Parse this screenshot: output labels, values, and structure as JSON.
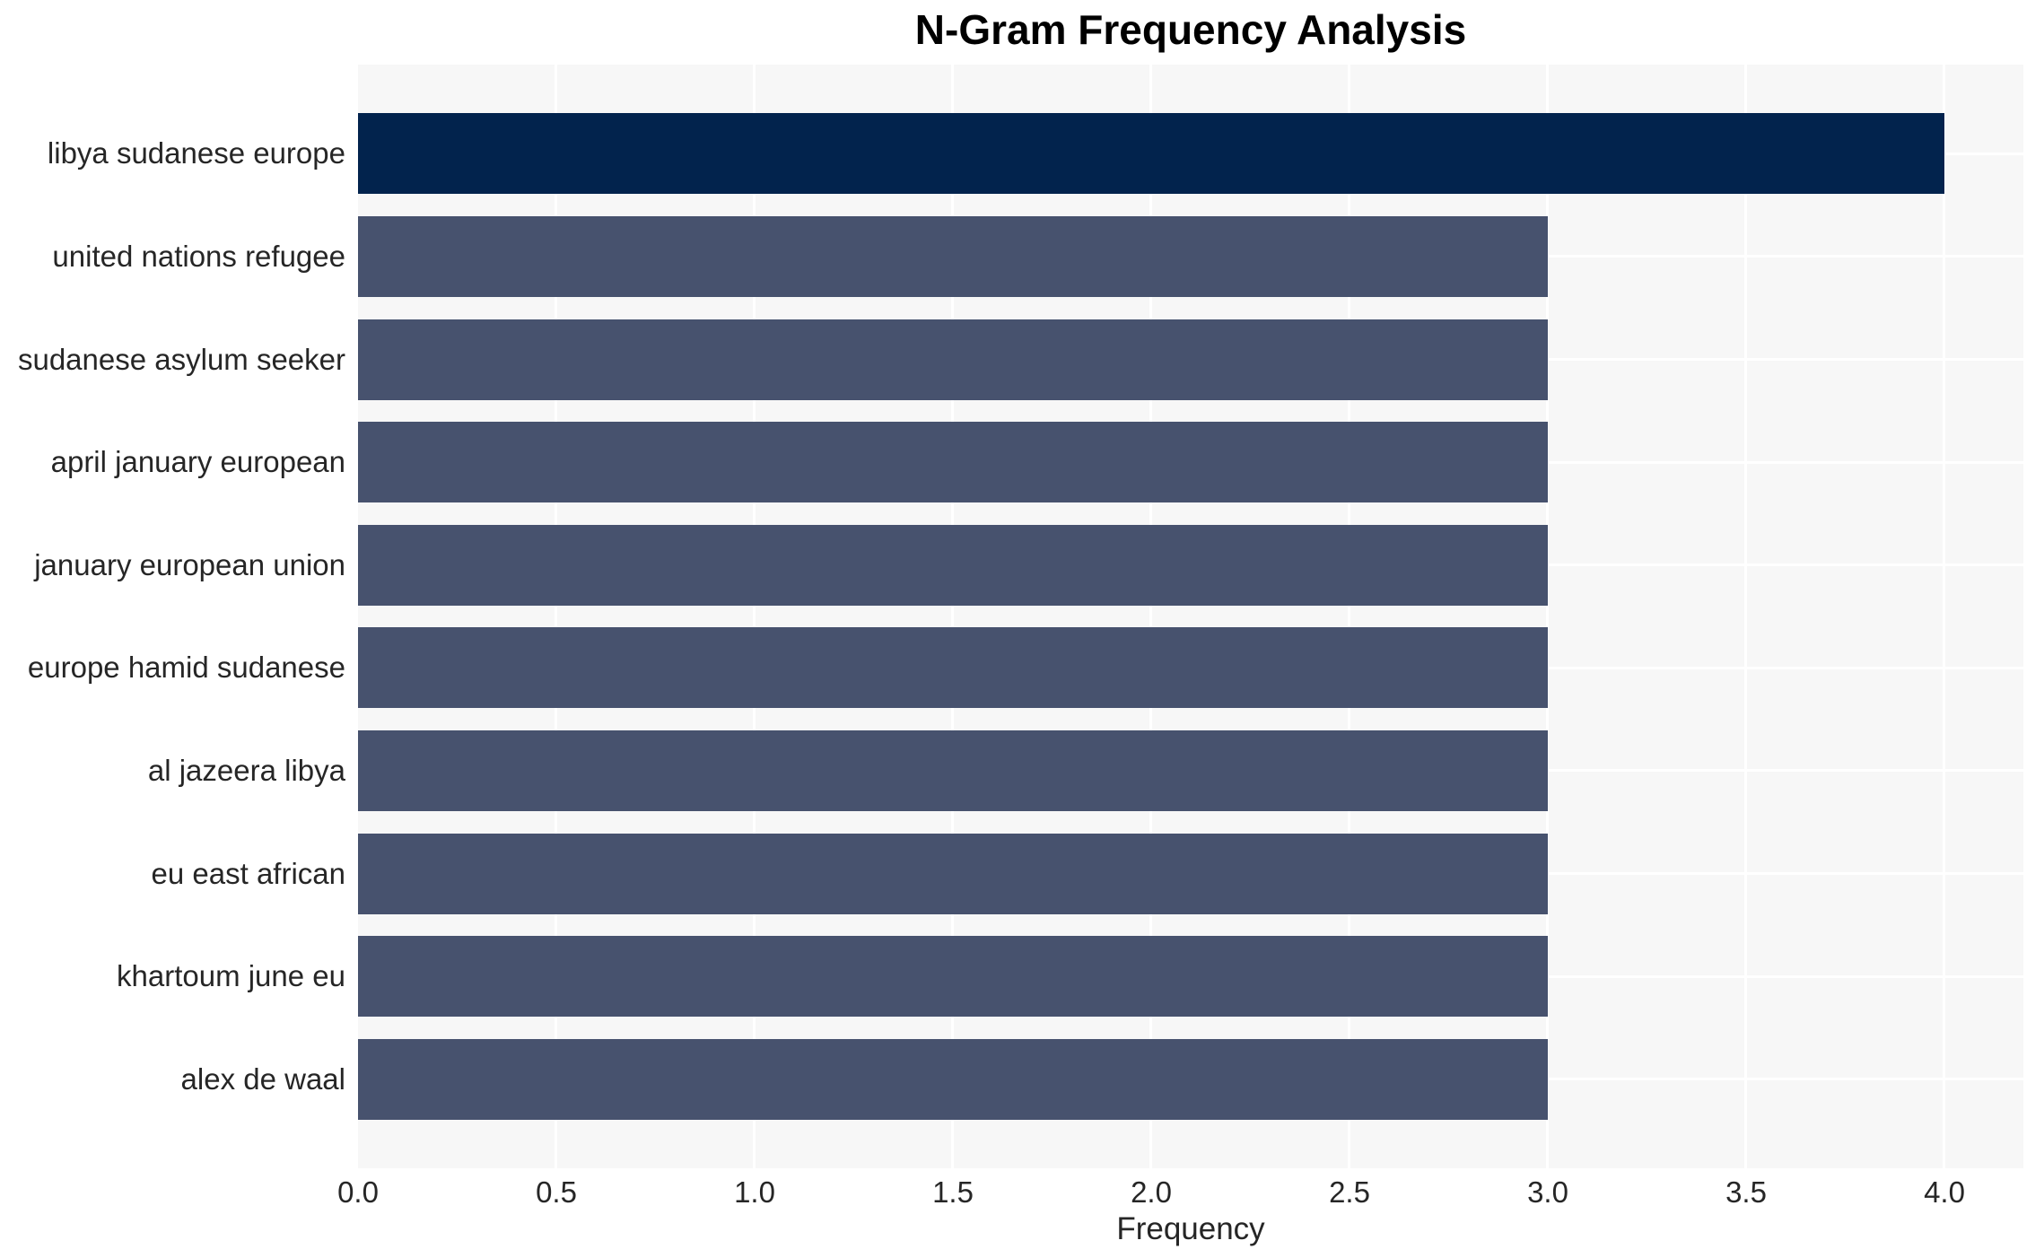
{
  "chart_data": {
    "type": "bar",
    "orientation": "horizontal",
    "title": "N-Gram Frequency Analysis",
    "xlabel": "Frequency",
    "ylabel": "",
    "categories": [
      "libya sudanese europe",
      "united nations refugee",
      "sudanese asylum seeker",
      "april january european",
      "january european union",
      "europe hamid sudanese",
      "al jazeera libya",
      "eu east african",
      "khartoum june eu",
      "alex de waal"
    ],
    "values": [
      4,
      3,
      3,
      3,
      3,
      3,
      3,
      3,
      3,
      3
    ],
    "bar_colors": [
      "#02234d",
      "#47526e",
      "#47526e",
      "#47526e",
      "#47526e",
      "#47526e",
      "#47526e",
      "#47526e",
      "#47526e",
      "#47526e"
    ],
    "xlim": [
      0,
      4.2
    ],
    "xtick_values": [
      0.0,
      0.5,
      1.0,
      1.5,
      2.0,
      2.5,
      3.0,
      3.5,
      4.0
    ],
    "xtick_labels": [
      "0.0",
      "0.5",
      "1.0",
      "1.5",
      "2.0",
      "2.5",
      "3.0",
      "3.5",
      "4.0"
    ],
    "grid": true,
    "legend": "none",
    "colors": {
      "highlight_bar": "#02234d",
      "bar": "#47526e",
      "plot_background": "#f7f7f7",
      "figure_background": "#ffffff",
      "gridline": "#ffffff",
      "tick_text": "#262626",
      "title_text": "#000000"
    }
  }
}
